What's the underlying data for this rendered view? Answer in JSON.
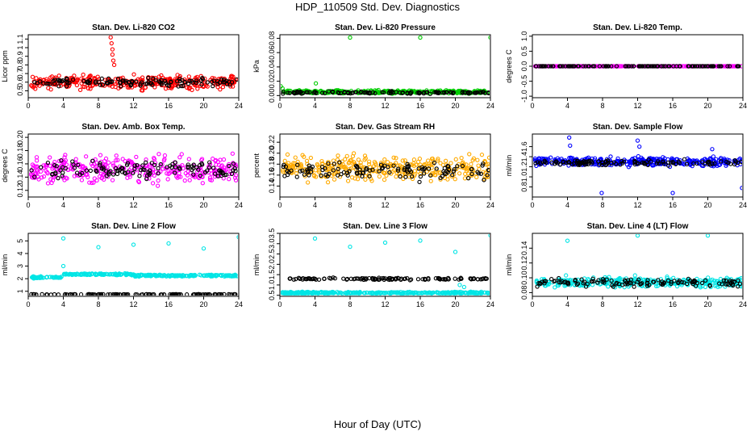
{
  "page": {
    "title": "HDP_110509  Std. Dev. Diagnostics",
    "xlabel": "Hour of Day (UTC)"
  },
  "chart_data": [
    {
      "type": "scatter",
      "title": "Stan. Dev. Li-820 CO2",
      "ylabel": "Licor ppm",
      "xlim": [
        0,
        24
      ],
      "xticks": [
        0,
        4,
        8,
        12,
        16,
        20,
        24
      ],
      "ylim": [
        0.42,
        1.15
      ],
      "yticks": [
        0.5,
        0.6,
        0.7,
        0.8,
        0.9,
        1.0,
        1.1
      ],
      "ytick_labels": [
        "0.5",
        "0.6",
        "0.7",
        "0.8",
        "0.9",
        "1",
        "1.1"
      ],
      "series": [
        {
          "color": "#ff0000",
          "baseline": 0.6,
          "spread": 0.07,
          "outliers": [
            [
              9.4,
              1.12
            ],
            [
              9.5,
              1.05
            ],
            [
              9.6,
              0.98
            ],
            [
              9.6,
              0.92
            ],
            [
              9.7,
              0.85
            ],
            [
              9.8,
              0.8
            ]
          ]
        },
        {
          "color": "#000000",
          "baseline": 0.6,
          "spread": 0.04
        }
      ]
    },
    {
      "type": "scatter",
      "title": "Stan. Dev. Li-820 Pressure",
      "ylabel": "kPa",
      "xlim": [
        0,
        24
      ],
      "xticks": [
        0,
        4,
        8,
        12,
        16,
        20,
        24
      ],
      "ylim": [
        -0.003,
        0.085
      ],
      "yticks": [
        0.0,
        0.02,
        0.04,
        0.06,
        0.08
      ],
      "ytick_labels": [
        "0.00",
        "0.02",
        "0.04",
        "0.06",
        "0.08"
      ],
      "series": [
        {
          "color": "#00cc00",
          "baseline": 0.005,
          "spread": 0.002,
          "outliers": [
            [
              8.0,
              0.081
            ],
            [
              16.0,
              0.081
            ],
            [
              24.0,
              0.081
            ],
            [
              4.1,
              0.017
            ],
            [
              0.1,
              0.013
            ],
            [
              0.3,
              0.01
            ]
          ]
        },
        {
          "color": "#000000",
          "baseline": 0.004,
          "spread": 0.0015
        }
      ]
    },
    {
      "type": "scatter",
      "title": "Stan. Dev. Li-820 Temp.",
      "ylabel": "degrees C",
      "xlim": [
        0,
        24
      ],
      "xticks": [
        0,
        4,
        8,
        12,
        16,
        20,
        24
      ],
      "ylim": [
        -1.05,
        1.05
      ],
      "yticks": [
        -1.0,
        -0.5,
        0.0,
        0.5,
        1.0
      ],
      "ytick_labels": [
        "-1.0",
        "-0.5",
        "0.0",
        "0.5",
        "1.0"
      ],
      "series": [
        {
          "color": "#ff00ff",
          "baseline": 0.0,
          "spread": 0.0
        },
        {
          "color": "#000000",
          "baseline": 0.0,
          "spread": 0.0
        }
      ]
    },
    {
      "type": "scatter",
      "title": "Stan. Dev. Amb. Box Temp.",
      "ylabel": "degrees C",
      "xlim": [
        0,
        24
      ],
      "xticks": [
        0,
        4,
        8,
        12,
        16,
        20,
        24
      ],
      "ylim": [
        0.11,
        0.205
      ],
      "yticks": [
        0.12,
        0.14,
        0.16,
        0.18,
        0.2
      ],
      "ytick_labels": [
        "0.12",
        "0.14",
        "0.16",
        "0.18",
        "0.20"
      ],
      "series": [
        {
          "color": "#ff00ff",
          "baseline": 0.152,
          "spread": 0.018
        },
        {
          "color": "#000000",
          "baseline": 0.152,
          "spread": 0.012
        }
      ]
    },
    {
      "type": "scatter",
      "title": "Stan. Dev. Gas Stream RH",
      "ylabel": "percent",
      "xlim": [
        0,
        24
      ],
      "xticks": [
        0,
        4,
        8,
        12,
        16,
        20,
        24
      ],
      "ylim": [
        0.12,
        0.235
      ],
      "yticks": [
        0.14,
        0.16,
        0.18,
        0.2,
        0.22
      ],
      "ytick_labels": [
        "0.14",
        "0.16",
        "0.18",
        "0.20",
        "0.22"
      ],
      "series": [
        {
          "color": "#ffaa00",
          "baseline": 0.172,
          "spread": 0.02
        },
        {
          "color": "#000000",
          "baseline": 0.168,
          "spread": 0.015
        }
      ]
    },
    {
      "type": "scatter",
      "title": "Stan. Dev. Sample Flow",
      "ylabel": "ml/min",
      "xlim": [
        0,
        24
      ],
      "xticks": [
        0,
        4,
        8,
        12,
        16,
        20,
        24
      ],
      "ylim": [
        0.6,
        1.85
      ],
      "yticks": [
        0.8,
        1.0,
        1.2,
        1.4,
        1.6
      ],
      "ytick_labels": [
        "0.8",
        "1.0",
        "1.2",
        "1.4",
        "1.6"
      ],
      "series": [
        {
          "color": "#0000ff",
          "baseline": 1.3,
          "spread": 0.08,
          "outliers": [
            [
              4.2,
              1.78
            ],
            [
              4.3,
              1.62
            ],
            [
              12.0,
              1.72
            ],
            [
              12.2,
              1.6
            ],
            [
              7.9,
              0.68
            ],
            [
              16.0,
              0.68
            ],
            [
              23.9,
              0.78
            ],
            [
              20.5,
              1.55
            ]
          ]
        },
        {
          "color": "#000000",
          "baseline": 1.28,
          "spread": 0.05
        }
      ]
    },
    {
      "type": "scatter",
      "title": "Stan. Dev. Line 2 Flow",
      "ylabel": "ml/min",
      "xlim": [
        0,
        24
      ],
      "xticks": [
        0,
        4,
        8,
        12,
        16,
        20,
        24
      ],
      "ylim": [
        0.6,
        5.6
      ],
      "yticks": [
        1,
        2,
        3,
        4,
        5
      ],
      "ytick_labels": [
        "1",
        "2",
        "3",
        "4",
        "5"
      ],
      "series": [
        {
          "color": "#00e5e5",
          "segments": [
            [
              0,
              4,
              2.1
            ],
            [
              4,
              12,
              2.35
            ],
            [
              12,
              24,
              2.25
            ]
          ],
          "spread": 0.06,
          "outliers": [
            [
              4.0,
              5.2
            ],
            [
              8.0,
              4.5
            ],
            [
              12.0,
              4.7
            ],
            [
              16.0,
              4.8
            ],
            [
              20.0,
              4.4
            ],
            [
              24.0,
              5.3
            ],
            [
              4.0,
              3.0
            ]
          ]
        },
        {
          "color": "#000000",
          "baseline": 0.75,
          "spread": 0.02
        }
      ]
    },
    {
      "type": "scatter",
      "title": "Stan. Dev. Line 3 Flow",
      "ylabel": "ml/min",
      "xlim": [
        0,
        24
      ],
      "xticks": [
        0,
        4,
        8,
        12,
        16,
        20,
        24
      ],
      "ylim": [
        0.45,
        3.5
      ],
      "yticks": [
        0.5,
        1.0,
        1.5,
        2.0,
        2.5,
        3.0,
        3.5
      ],
      "ytick_labels": [
        "0.5",
        "1.0",
        "1.5",
        "2.0",
        "2.5",
        "3.0",
        "3.5"
      ],
      "series": [
        {
          "color": "#00e5e5",
          "baseline": 0.62,
          "spread": 0.04,
          "outliers": [
            [
              4.0,
              3.25
            ],
            [
              8.0,
              2.85
            ],
            [
              12.0,
              3.05
            ],
            [
              16.0,
              3.15
            ],
            [
              20.0,
              2.6
            ],
            [
              24.0,
              3.4
            ],
            [
              20.5,
              1.0
            ],
            [
              21.0,
              0.9
            ]
          ]
        },
        {
          "color": "#000000",
          "baseline": 1.3,
          "spread": 0.05
        }
      ]
    },
    {
      "type": "scatter",
      "title": "Stan. Dev. Line 4 (LT) Flow",
      "ylabel": "ml/min",
      "xlim": [
        0,
        24
      ],
      "xticks": [
        0,
        4,
        8,
        12,
        16,
        20,
        24
      ],
      "ylim": [
        0.075,
        0.16
      ],
      "yticks": [
        0.08,
        0.1,
        0.12,
        0.14
      ],
      "ytick_labels": [
        "0.08",
        "0.10",
        "0.12",
        "0.14"
      ],
      "series": [
        {
          "color": "#00e5e5",
          "baseline": 0.094,
          "spread": 0.006,
          "outliers": [
            [
              4.0,
              0.15
            ],
            [
              12.0,
              0.157
            ],
            [
              20.0,
              0.157
            ]
          ]
        },
        {
          "color": "#000000",
          "baseline": 0.094,
          "spread": 0.005
        }
      ]
    }
  ]
}
